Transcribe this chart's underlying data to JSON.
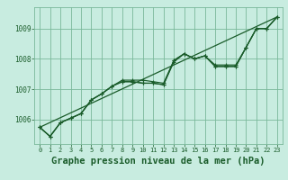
{
  "bg_color": "#c8ece0",
  "grid_color": "#7ab89a",
  "line_color": "#1a5c2a",
  "title": "Graphe pression niveau de la mer (hPa)",
  "xlim": [
    -0.5,
    23.5
  ],
  "ylim": [
    1005.2,
    1009.7
  ],
  "yticks": [
    1006,
    1007,
    1008,
    1009
  ],
  "xticks": [
    0,
    1,
    2,
    3,
    4,
    5,
    6,
    7,
    8,
    9,
    10,
    11,
    12,
    13,
    14,
    15,
    16,
    17,
    18,
    19,
    20,
    21,
    22,
    23
  ],
  "line1_x": [
    0,
    1,
    2,
    3,
    4,
    5,
    6,
    7,
    8,
    9,
    10,
    11,
    12,
    13,
    14,
    15,
    16,
    17,
    18,
    19,
    20,
    21,
    22,
    23
  ],
  "line1_y": [
    1005.75,
    1005.45,
    1005.9,
    1006.05,
    1006.2,
    1006.65,
    1006.85,
    1007.1,
    1007.25,
    1007.25,
    1007.2,
    1007.2,
    1007.15,
    1007.95,
    1008.17,
    1008.0,
    1008.1,
    1007.75,
    1007.75,
    1007.75,
    1008.38,
    1009.0,
    1009.0,
    1009.38
  ],
  "line2_x": [
    0,
    1,
    2,
    3,
    4,
    5,
    6,
    7,
    8,
    9,
    10,
    11,
    12,
    13,
    14,
    15,
    16,
    17,
    18,
    19,
    20,
    21,
    22,
    23
  ],
  "line2_y": [
    1005.75,
    1005.45,
    1005.9,
    1006.05,
    1006.2,
    1006.65,
    1006.85,
    1007.1,
    1007.25,
    1007.25,
    1007.2,
    1007.2,
    1007.15,
    1007.9,
    1008.17,
    1008.0,
    1008.1,
    1007.75,
    1007.75,
    1007.75,
    1008.38,
    1009.0,
    1009.0,
    1009.38
  ],
  "line3_x": [
    0,
    1,
    2,
    3,
    4,
    5,
    6,
    7,
    8,
    9,
    10,
    11,
    12,
    13,
    14,
    15,
    16,
    17,
    18,
    19,
    20,
    21,
    22,
    23
  ],
  "line3_y": [
    1005.75,
    1005.45,
    1005.9,
    1006.05,
    1006.2,
    1006.65,
    1006.85,
    1007.1,
    1007.3,
    1007.3,
    1007.3,
    1007.25,
    1007.2,
    1007.95,
    1008.17,
    1008.0,
    1008.1,
    1007.8,
    1007.8,
    1007.8,
    1008.38,
    1009.0,
    1009.0,
    1009.38
  ],
  "line4_x": [
    0,
    23
  ],
  "line4_y": [
    1005.75,
    1009.38
  ]
}
